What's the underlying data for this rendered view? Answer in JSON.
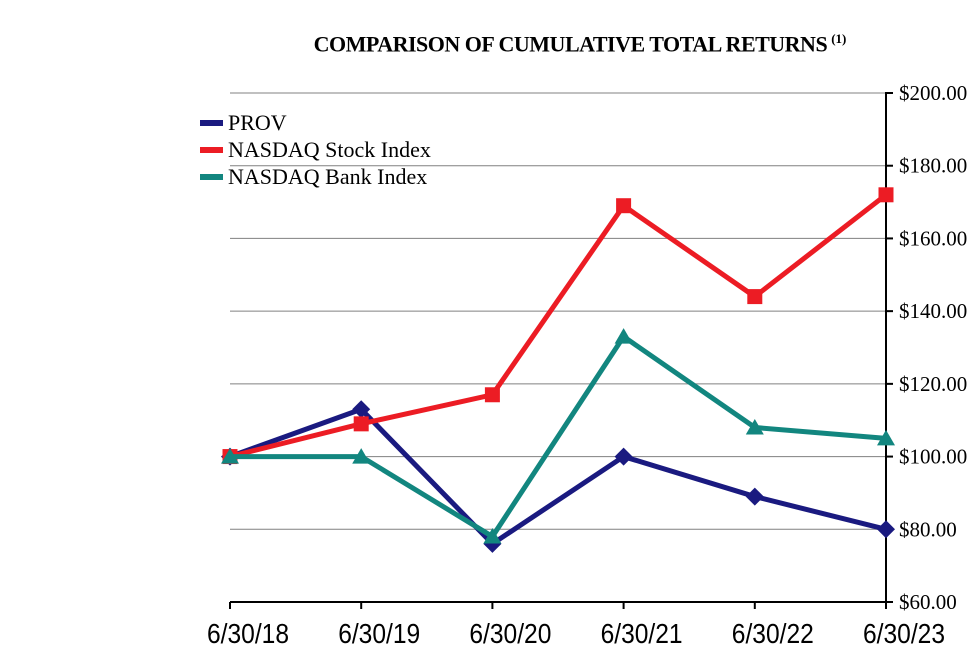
{
  "title": {
    "text": "COMPARISON OF CUMULATIVE TOTAL RETURNS",
    "superscript": "(1)"
  },
  "chart_data": {
    "type": "line",
    "title": "COMPARISON OF CUMULATIVE TOTAL RETURNS (1)",
    "x_labels": [
      "6/30/18",
      "6/30/19",
      "6/30/20",
      "6/30/21",
      "6/30/22",
      "6/30/23"
    ],
    "series": [
      {
        "name": "PROV",
        "color": "#1A1A80",
        "marker": "diamond",
        "values": [
          100,
          113,
          76,
          100,
          89,
          80
        ]
      },
      {
        "name": "NASDAQ Stock Index",
        "color": "#EC1C24",
        "marker": "square",
        "values": [
          100,
          109,
          117,
          169,
          144,
          172
        ]
      },
      {
        "name": "NASDAQ Bank Index",
        "color": "#12867F",
        "marker": "triangle",
        "values": [
          100,
          100,
          78,
          133,
          108,
          105
        ]
      }
    ],
    "y_axis": {
      "min": 60,
      "max": 200,
      "step": 20,
      "tick_labels": [
        "$60.00",
        "$80.00",
        "$100.00",
        "$120.00",
        "$140.00",
        "$160.00",
        "$180.00",
        "$200.00"
      ]
    },
    "legend": {
      "position": "top-left",
      "entries": [
        "PROV",
        "NASDAQ Stock Index",
        "NASDAQ Bank Index"
      ]
    },
    "grid": true,
    "grid_color": "#808080",
    "axis_color": "#000000",
    "background": "#FFFFFF"
  }
}
